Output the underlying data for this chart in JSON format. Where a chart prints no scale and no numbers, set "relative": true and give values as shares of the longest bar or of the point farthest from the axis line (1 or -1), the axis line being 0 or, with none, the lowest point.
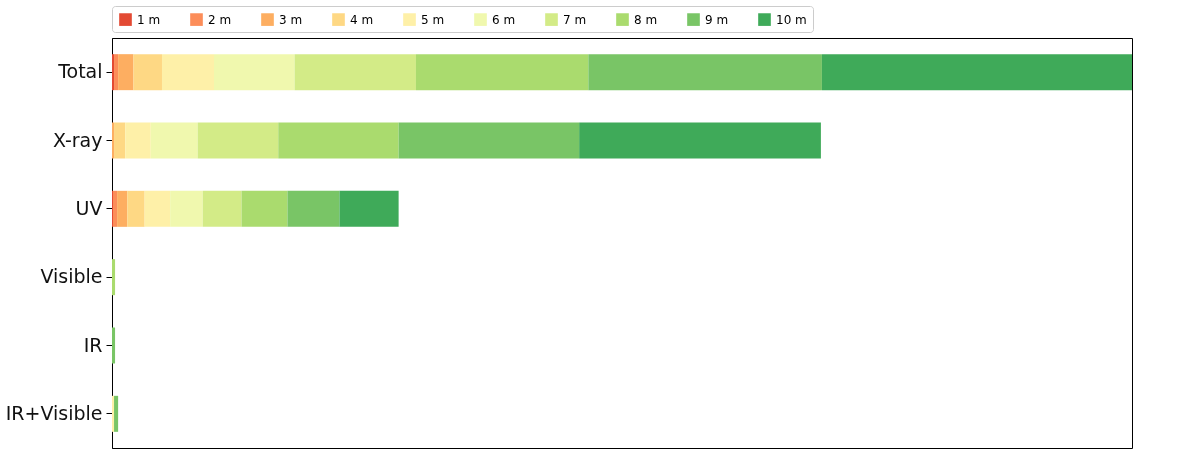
{
  "chart_data": {
    "type": "bar",
    "orientation": "horizontal",
    "stacked": true,
    "relative": true,
    "legend": "top",
    "categories": [
      "Total",
      "X-ray",
      "UV",
      "Visible",
      "IR",
      "IR+Visible"
    ],
    "series": [
      {
        "name": "1 m",
        "color": "#e34a33",
        "values": [
          0.002,
          0,
          0.001,
          0,
          0,
          0
        ]
      },
      {
        "name": "2 m",
        "color": "#fc8d59",
        "values": [
          0.004,
          0,
          0.004,
          0,
          0,
          0
        ]
      },
      {
        "name": "3 m",
        "color": "#fdae61",
        "values": [
          0.015,
          0.002,
          0.01,
          0,
          0,
          0
        ]
      },
      {
        "name": "4 m",
        "color": "#fed884",
        "values": [
          0.028,
          0.011,
          0.017,
          0,
          0,
          0
        ]
      },
      {
        "name": "5 m",
        "color": "#fef0a8",
        "values": [
          0.051,
          0.025,
          0.025,
          0,
          0,
          0.002
        ]
      },
      {
        "name": "6 m",
        "color": "#f0f8ae",
        "values": [
          0.079,
          0.046,
          0.032,
          0,
          0,
          0
        ]
      },
      {
        "name": "7 m",
        "color": "#d3eb87",
        "values": [
          0.119,
          0.079,
          0.038,
          0,
          0,
          0
        ]
      },
      {
        "name": "8 m",
        "color": "#aadb6e",
        "values": [
          0.169,
          0.118,
          0.045,
          0.003,
          0,
          0
        ]
      },
      {
        "name": "9 m",
        "color": "#79c566",
        "values": [
          0.229,
          0.177,
          0.051,
          0,
          0.003,
          0.004
        ]
      },
      {
        "name": "10 m",
        "color": "#3faa59",
        "values": [
          0.304,
          0.237,
          0.058,
          0,
          0,
          0
        ]
      }
    ]
  }
}
